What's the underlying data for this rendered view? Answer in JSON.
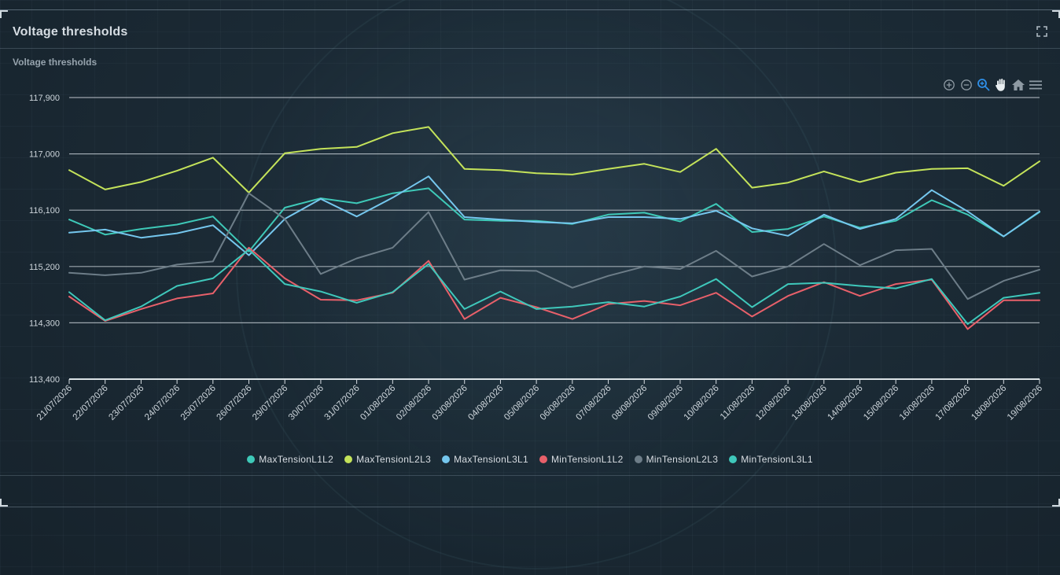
{
  "panel": {
    "title": "Voltage thresholds"
  },
  "icons": {
    "fullscreen": "fullscreen-icon",
    "zoom_in": "zoom-in-icon",
    "zoom_out": "zoom-out-icon",
    "selection_zoom": "selection-zoom-icon",
    "pan": "pan-hand-icon",
    "reset": "home-icon",
    "menu": "menu-icon"
  },
  "chart_data": {
    "type": "line",
    "title": "Voltage thresholds",
    "xlabel": "",
    "ylabel": "",
    "ylim": [
      113400,
      117900
    ],
    "yticks": [
      "113,400",
      "114,300",
      "115,200",
      "116,100",
      "117,000",
      "117,900"
    ],
    "ytick_values": [
      113400,
      114300,
      115200,
      116100,
      117000,
      117900
    ],
    "grid": true,
    "legend_position": "bottom",
    "categories": [
      "21/07/2026",
      "22/07/2026",
      "23/07/2026",
      "24/07/2026",
      "25/07/2026",
      "26/07/2026",
      "29/07/2026",
      "30/07/2026",
      "31/07/2026",
      "01/08/2026",
      "02/08/2026",
      "03/08/2026",
      "04/08/2026",
      "05/08/2026",
      "06/08/2026",
      "07/08/2026",
      "08/08/2026",
      "09/08/2026",
      "10/08/2026",
      "11/08/2026",
      "12/08/2026",
      "13/08/2026",
      "14/08/2026",
      "15/08/2026",
      "16/08/2026",
      "17/08/2026",
      "18/08/2026",
      "19/08/2026"
    ],
    "series": [
      {
        "name": "MaxTensionL1L2",
        "color": "#3ec9b8",
        "values": [
          115950,
          115710,
          115800,
          115870,
          116000,
          115440,
          116140,
          116290,
          116210,
          116370,
          116450,
          115950,
          115930,
          115930,
          115880,
          116030,
          116060,
          115920,
          116200,
          115750,
          115800,
          116000,
          115820,
          115930,
          116260,
          116030,
          115680,
          116070
        ]
      },
      {
        "name": "MaxTensionL2L3",
        "color": "#c4e35a",
        "values": [
          116740,
          116430,
          116550,
          116730,
          116940,
          116380,
          117010,
          117080,
          117110,
          117330,
          117430,
          116760,
          116740,
          116690,
          116670,
          116760,
          116840,
          116710,
          117080,
          116460,
          116540,
          116720,
          116550,
          116700,
          116760,
          116770,
          116490,
          116880
        ]
      },
      {
        "name": "MaxTensionL3L1",
        "color": "#75c7ee",
        "values": [
          115740,
          115790,
          115660,
          115730,
          115860,
          115380,
          115960,
          116280,
          116000,
          116300,
          116640,
          115990,
          115950,
          115910,
          115890,
          115990,
          115990,
          115960,
          116090,
          115810,
          115690,
          116030,
          115800,
          115960,
          116420,
          116080,
          115680,
          116080
        ]
      },
      {
        "name": "MinTensionL1L2",
        "color": "#e8606a",
        "values": [
          114720,
          114330,
          114520,
          114690,
          114770,
          115500,
          115010,
          114670,
          114660,
          114780,
          115290,
          114360,
          114700,
          114550,
          114360,
          114600,
          114650,
          114580,
          114780,
          114400,
          114730,
          114950,
          114730,
          114920,
          114990,
          114200,
          114660,
          114660
        ]
      },
      {
        "name": "MinTensionL2L3",
        "color": "#6d7d88",
        "values": [
          115100,
          115060,
          115100,
          115230,
          115280,
          116370,
          115960,
          115080,
          115330,
          115500,
          116070,
          114990,
          115140,
          115130,
          114860,
          115050,
          115200,
          115160,
          115450,
          115040,
          115200,
          115560,
          115220,
          115460,
          115480,
          114680,
          114970,
          115150
        ]
      },
      {
        "name": "MinTensionL3L1",
        "color": "#3fc8bb",
        "values": [
          114790,
          114340,
          114560,
          114890,
          115010,
          115470,
          114920,
          114800,
          114620,
          114790,
          115240,
          114520,
          114800,
          114520,
          114560,
          114630,
          114560,
          114720,
          115000,
          114550,
          114920,
          114940,
          114890,
          114850,
          115000,
          114280,
          114700,
          114780
        ]
      }
    ]
  }
}
